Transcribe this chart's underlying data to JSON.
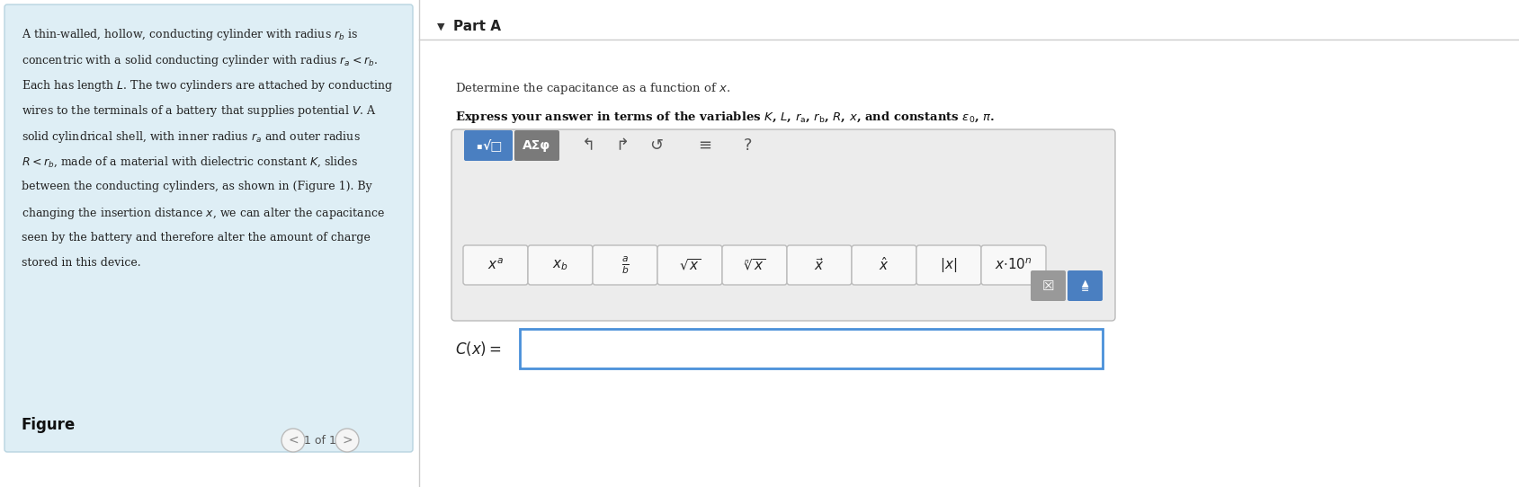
{
  "bg_color": "#ffffff",
  "left_panel_bg": "#deeef5",
  "left_panel_border": "#b8d4e0",
  "figure_label": "Figure",
  "pagination": "1 of 1",
  "divider_color": "#cccccc",
  "part_a_label": "Part A",
  "toolbar_bg": "#e8e8e8",
  "toolbar_border": "#bbbbbb",
  "btn1_bg": "#4a7fc1",
  "btn2_bg": "#7a7a7a",
  "answer_box_border": "#4a90d9",
  "answer_box_bg": "#ffffff",
  "font_size_left": 9.0,
  "font_size_part_a": 11,
  "font_size_question": 9.5,
  "left_text_lines": [
    "A thin-walled, hollow, conducting cylinder with radius $r_b$ is",
    "concentric with a solid conducting cylinder with radius $r_a < r_b$.",
    "Each has length $L$. The two cylinders are attached by conducting",
    "wires to the terminals of a battery that supplies potential $V$. A",
    "solid cylindrical shell, with inner radius $r_a$ and outer radius",
    "$R < r_b$, made of a material with dielectric constant $K$, slides",
    "between the conducting cylinders, as shown in (Figure 1). By",
    "changing the insertion distance $x$, we can alter the capacitance",
    "seen by the battery and therefore alter the amount of charge",
    "stored in this device."
  ],
  "math_buttons": [
    "$x^a$",
    "$x_b$",
    "$\\frac{a}{b}$",
    "$\\sqrt{x}$",
    "$\\sqrt[n]{x}$",
    "$\\vec{x}$",
    "$\\hat{x}$",
    "$|x|$",
    "$x{\\cdot}10^n$"
  ],
  "icon_color": "#555555",
  "icon_size": 13
}
